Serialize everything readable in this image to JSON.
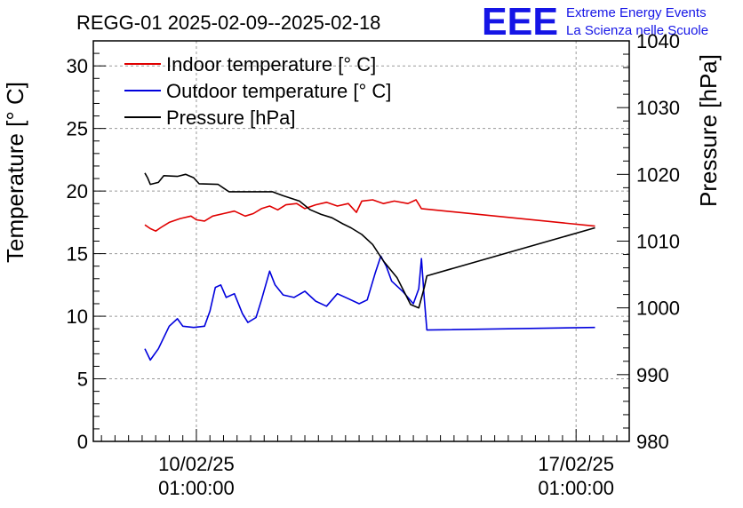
{
  "title": "REGG-01 2025-02-09--2025-02-18",
  "logo": {
    "text": "EEE",
    "line1": "Extreme Energy Events",
    "line2": "La Scienza nelle Scuole",
    "color": "#1515e6"
  },
  "chart_data": {
    "type": "line",
    "title": "REGG-01 2025-02-09--2025-02-18",
    "x_ticks": [
      {
        "date": "10/02/25",
        "time": "01:00:00",
        "x": 1.0
      },
      {
        "date": "17/02/25",
        "time": "01:00:00",
        "x": 8.0
      }
    ],
    "xlim": [
      -0.9,
      8.98
    ],
    "y_left": {
      "label": "Temperature [° C]",
      "lim": [
        0,
        32
      ],
      "ticks": [
        0,
        5,
        10,
        15,
        20,
        25,
        30
      ]
    },
    "y_right": {
      "label": "Pressure [hPa]",
      "lim": [
        980,
        1040
      ],
      "ticks": [
        980,
        990,
        1000,
        1010,
        1020,
        1030,
        1040
      ]
    },
    "grid": true,
    "legend_position": "top-left",
    "series": [
      {
        "name": "Indoor temperature [° C]",
        "axis": "left",
        "color": "#e00000",
        "points": [
          [
            0.05,
            17.3
          ],
          [
            0.15,
            17.0
          ],
          [
            0.25,
            16.8
          ],
          [
            0.35,
            17.1
          ],
          [
            0.5,
            17.5
          ],
          [
            0.7,
            17.8
          ],
          [
            0.9,
            18.0
          ],
          [
            1.0,
            17.7
          ],
          [
            1.15,
            17.6
          ],
          [
            1.3,
            18.0
          ],
          [
            1.5,
            18.2
          ],
          [
            1.7,
            18.4
          ],
          [
            1.9,
            18.0
          ],
          [
            2.05,
            18.2
          ],
          [
            2.2,
            18.6
          ],
          [
            2.35,
            18.8
          ],
          [
            2.5,
            18.5
          ],
          [
            2.65,
            18.9
          ],
          [
            2.85,
            19.0
          ],
          [
            3.0,
            18.6
          ],
          [
            3.2,
            18.9
          ],
          [
            3.4,
            19.1
          ],
          [
            3.6,
            18.8
          ],
          [
            3.8,
            19.0
          ],
          [
            3.95,
            18.3
          ],
          [
            4.05,
            19.2
          ],
          [
            4.25,
            19.3
          ],
          [
            4.45,
            19.0
          ],
          [
            4.65,
            19.2
          ],
          [
            4.9,
            19.0
          ],
          [
            5.05,
            19.3
          ],
          [
            5.15,
            18.6
          ],
          [
            8.35,
            17.2
          ]
        ]
      },
      {
        "name": "Outdoor temperature [° C]",
        "axis": "left",
        "color": "#0000dd",
        "points": [
          [
            0.05,
            7.4
          ],
          [
            0.15,
            6.5
          ],
          [
            0.3,
            7.4
          ],
          [
            0.5,
            9.2
          ],
          [
            0.65,
            9.8
          ],
          [
            0.75,
            9.2
          ],
          [
            0.95,
            9.1
          ],
          [
            1.15,
            9.2
          ],
          [
            1.25,
            10.4
          ],
          [
            1.35,
            12.3
          ],
          [
            1.45,
            12.5
          ],
          [
            1.55,
            11.5
          ],
          [
            1.7,
            11.8
          ],
          [
            1.85,
            10.2
          ],
          [
            1.95,
            9.5
          ],
          [
            2.1,
            9.9
          ],
          [
            2.2,
            11.3
          ],
          [
            2.35,
            13.6
          ],
          [
            2.45,
            12.5
          ],
          [
            2.6,
            11.7
          ],
          [
            2.8,
            11.5
          ],
          [
            3.0,
            12.0
          ],
          [
            3.2,
            11.2
          ],
          [
            3.4,
            10.8
          ],
          [
            3.6,
            11.8
          ],
          [
            3.8,
            11.4
          ],
          [
            4.0,
            11.0
          ],
          [
            4.15,
            11.3
          ],
          [
            4.3,
            13.5
          ],
          [
            4.4,
            14.8
          ],
          [
            4.5,
            14.0
          ],
          [
            4.6,
            12.8
          ],
          [
            4.8,
            12.0
          ],
          [
            5.0,
            11.0
          ],
          [
            5.1,
            12.2
          ],
          [
            5.15,
            14.6
          ],
          [
            5.2,
            11.5
          ],
          [
            5.25,
            8.9
          ],
          [
            8.35,
            9.1
          ]
        ]
      },
      {
        "name": "Pressure [hPa]",
        "axis": "right",
        "color": "#000000",
        "points": [
          [
            0.05,
            1020.2
          ],
          [
            0.1,
            1019.5
          ],
          [
            0.15,
            1018.5
          ],
          [
            0.3,
            1018.8
          ],
          [
            0.4,
            1019.8
          ],
          [
            0.65,
            1019.7
          ],
          [
            0.8,
            1020.0
          ],
          [
            0.95,
            1019.5
          ],
          [
            1.05,
            1018.6
          ],
          [
            1.4,
            1018.5
          ],
          [
            1.6,
            1017.4
          ],
          [
            2.4,
            1017.4
          ],
          [
            2.6,
            1016.8
          ],
          [
            2.9,
            1016.0
          ],
          [
            3.1,
            1014.7
          ],
          [
            3.3,
            1014.0
          ],
          [
            3.5,
            1013.5
          ],
          [
            3.7,
            1012.6
          ],
          [
            3.85,
            1012.0
          ],
          [
            4.05,
            1011.0
          ],
          [
            4.25,
            1009.5
          ],
          [
            4.45,
            1007.0
          ],
          [
            4.7,
            1004.5
          ],
          [
            4.95,
            1000.5
          ],
          [
            5.1,
            1000.0
          ],
          [
            5.2,
            1003.0
          ],
          [
            5.25,
            1004.8
          ],
          [
            8.35,
            1012.0
          ]
        ]
      }
    ]
  }
}
